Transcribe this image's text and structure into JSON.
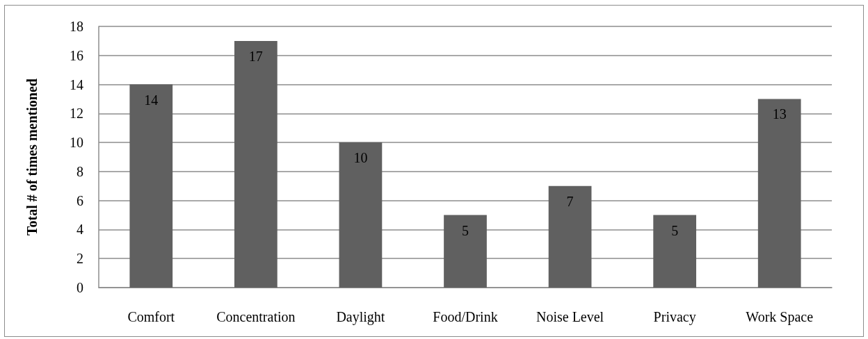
{
  "chart_data": {
    "type": "bar",
    "ylabel": "Total # of times mentioned",
    "categories": [
      "Comfort",
      "Concentration",
      "Daylight",
      "Food/Drink",
      "Noise Level",
      "Privacy",
      "Work Space"
    ],
    "values": [
      14,
      17,
      10,
      5,
      7,
      5,
      13
    ],
    "color": "#606060",
    "ylim": [
      0,
      18
    ],
    "yticks": [
      0,
      2,
      4,
      6,
      8,
      10,
      12,
      14,
      16,
      18
    ],
    "grid": "y",
    "data_labels": true
  }
}
